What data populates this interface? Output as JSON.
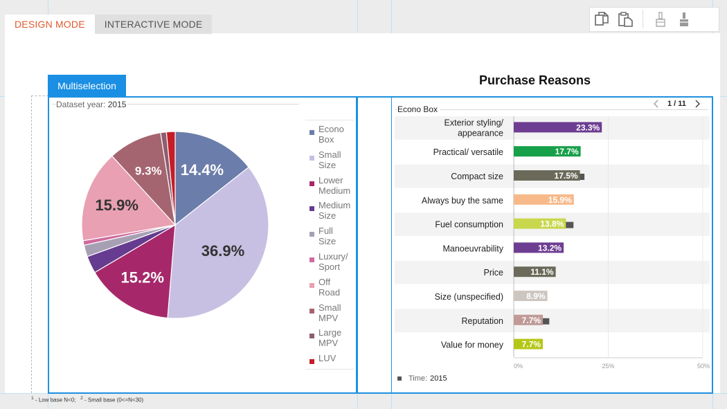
{
  "tabs": [
    {
      "label": "DESIGN MODE",
      "active": true
    },
    {
      "label": "INTERACTIVE MODE",
      "active": false
    }
  ],
  "toolbar": {
    "icons": [
      "copy-icon",
      "paste-icon",
      "brush-outline-icon",
      "brush-filled-icon"
    ]
  },
  "multiselection_label": "Multiselection",
  "dataset": {
    "label": "Dataset year:",
    "value": "2015"
  },
  "pie": {
    "chart_data": {
      "type": "pie",
      "slices": [
        {
          "label": "Econo Box",
          "value": 14.4,
          "color": "#6b7daa",
          "value_label": "14.4%"
        },
        {
          "label": "Small Size",
          "value": 36.9,
          "color": "#c8c0e2",
          "value_label": "36.9%"
        },
        {
          "label": "Lower Medium",
          "value": 15.2,
          "color": "#a6286a",
          "value_label": "15.2%"
        },
        {
          "label": "Medium Size",
          "value": 3.0,
          "color": "#653c8f",
          "value_label": ""
        },
        {
          "label": "Full Size",
          "value": 2.0,
          "color": "#a7a0b5",
          "value_label": ""
        },
        {
          "label": "Luxury/ Sport",
          "value": 0.8,
          "color": "#cf6b9e",
          "value_label": ""
        },
        {
          "label": "Off Road",
          "value": 15.9,
          "color": "#e8a0b2",
          "value_label": "15.9%"
        },
        {
          "label": "Small MPV",
          "value": 9.3,
          "color": "#a56570",
          "value_label": "9.3%"
        },
        {
          "label": "Large MPV",
          "value": 1.0,
          "color": "#8e5d6f",
          "value_label": ""
        },
        {
          "label": "LUV",
          "value": 1.5,
          "color": "#c61d28",
          "value_label": ""
        }
      ]
    },
    "legend": [
      {
        "line1": "Econo",
        "line2": "Box",
        "color": "#6b7daa"
      },
      {
        "line1": "Small",
        "line2": "Size",
        "color": "#c8c0e2"
      },
      {
        "line1": "Lower",
        "line2": "Medium",
        "color": "#a6286a"
      },
      {
        "line1": "Medium",
        "line2": "Size",
        "color": "#653c8f"
      },
      {
        "line1": "Full",
        "line2": "Size",
        "color": "#a7a0b5"
      },
      {
        "line1": "Luxury/",
        "line2": "Sport",
        "color": "#cf6b9e"
      },
      {
        "line1": "Off",
        "line2": "Road",
        "color": "#e8a0b2"
      },
      {
        "line1": "Small",
        "line2": "MPV",
        "color": "#a56570"
      },
      {
        "line1": "Large",
        "line2": "MPV",
        "color": "#8e5d6f"
      },
      {
        "line1": "LUV",
        "line2": "",
        "color": "#c61d28"
      }
    ]
  },
  "bar": {
    "title": "Purchase Reasons",
    "segment_label": "Econo Box",
    "pager": {
      "current": "1 / 11"
    },
    "chart_data": {
      "type": "bar",
      "orientation": "horizontal",
      "xlim": [
        0,
        50
      ],
      "tick_labels": [
        "0%",
        "25%",
        "50%"
      ],
      "tick_values": [
        0,
        25,
        50
      ],
      "series_legend": {
        "label": "Time:",
        "value": "2015"
      },
      "categories": [
        {
          "label1": "Exterior styling/",
          "label2": "appearance",
          "value": 23.3,
          "shadow": 23.0,
          "color": "#6d3d92",
          "value_label": "23.3%"
        },
        {
          "label1": "Practical/ versatile",
          "label2": "",
          "value": 17.7,
          "shadow": 11.6,
          "color": "#17a04a",
          "value_label": "17.7%"
        },
        {
          "label1": "Compact size",
          "label2": "",
          "value": 17.5,
          "shadow": 18.7,
          "color": "#6b6a5a",
          "value_label": "17.5%"
        },
        {
          "label1": "Always buy the same",
          "label2": "",
          "value": 15.9,
          "shadow": 14.8,
          "color": "#f7b98a",
          "value_label": "15.9%"
        },
        {
          "label1": "Fuel consumption",
          "label2": "",
          "value": 13.8,
          "shadow": 15.8,
          "color": "#c9d74d",
          "value_label": "13.8%"
        },
        {
          "label1": "Manoeuvrability",
          "label2": "",
          "value": 13.2,
          "shadow": 12.8,
          "color": "#6d3d92",
          "value_label": "13.2%"
        },
        {
          "label1": "Price",
          "label2": "",
          "value": 11.1,
          "shadow": 10.7,
          "color": "#6b6a5a",
          "value_label": "11.1%"
        },
        {
          "label1": "Size (unspecified)",
          "label2": "",
          "value": 8.9,
          "shadow": 8.5,
          "color": "#cdc6c0",
          "value_label": "8.9%"
        },
        {
          "label1": "Reputation",
          "label2": "",
          "value": 7.7,
          "shadow": 9.4,
          "color": "#bf9a97",
          "value_label": "7.7%"
        },
        {
          "label1": "Value for money",
          "label2": "",
          "value": 7.7,
          "shadow": 6.0,
          "color": "#b4c718",
          "value_label": "7.7%"
        }
      ]
    }
  },
  "footnote": {
    "n1": "1",
    "t1": " - Low base N<0;",
    "n2": "2",
    "t2": " - Small base (0<=N<30)"
  }
}
